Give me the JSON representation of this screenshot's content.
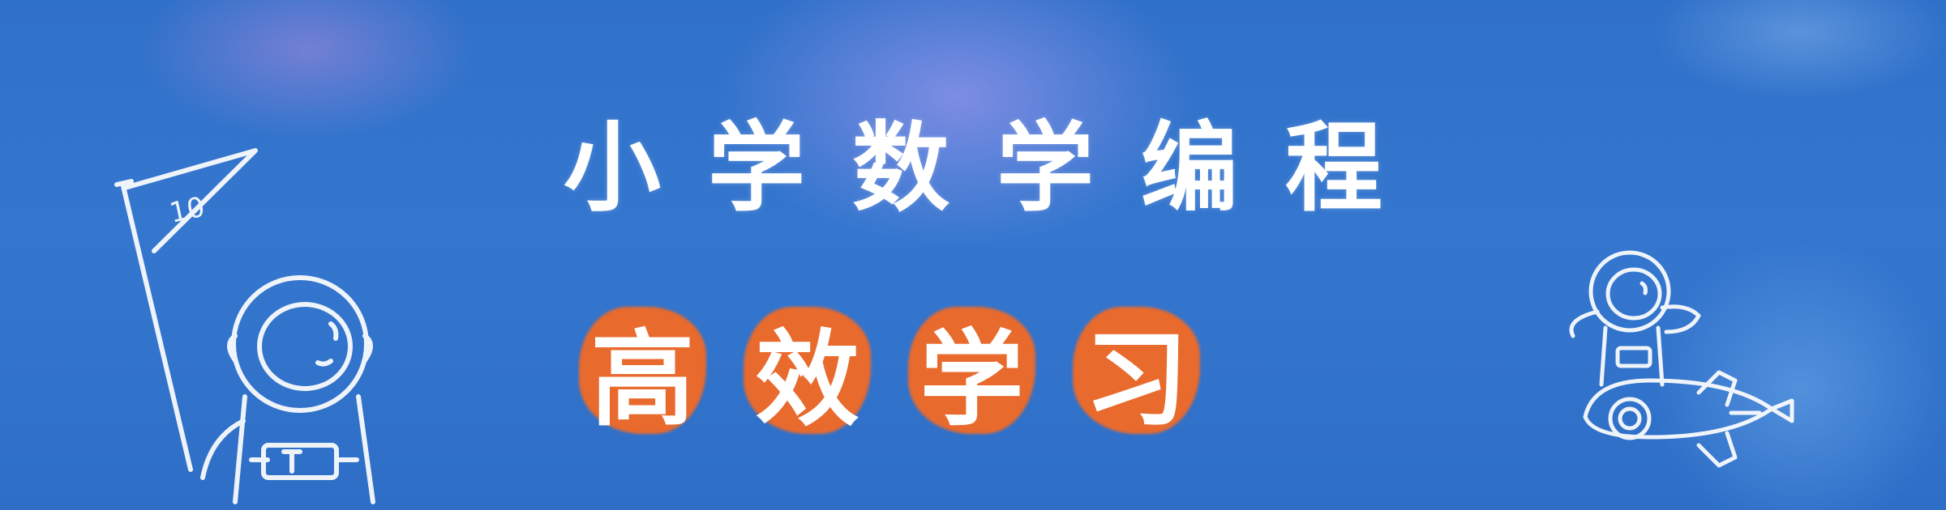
{
  "banner": {
    "title": "小学数学编程",
    "subtitle_chars": [
      "高",
      "效",
      "学",
      "习"
    ],
    "flag_text": "10",
    "colors": {
      "background": "#2f70c9",
      "title_text": "#ffffff",
      "highlight": "#e86a2d"
    },
    "icons": [
      "astronaut-with-flag-icon",
      "astronaut-on-rocket-icon"
    ]
  }
}
